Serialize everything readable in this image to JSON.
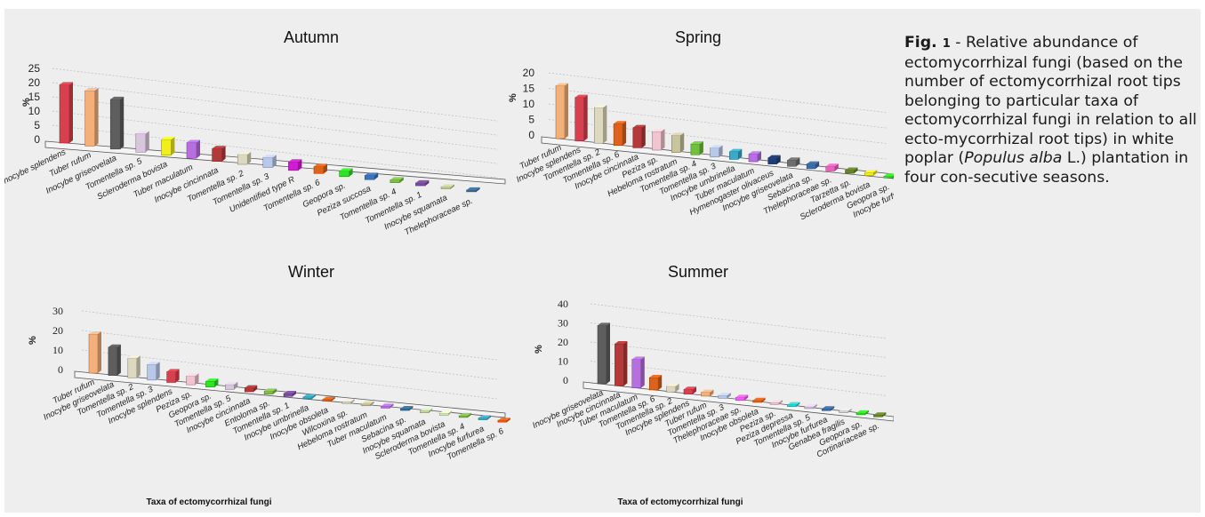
{
  "caption": {
    "fig": "Fig.",
    "num": "1",
    "text_before": " - Relative abundance of ectomycorrhizal fungi (based on the number of ectomycorrhizal root tips belonging to particular taxa of ectomycorrhizal fungi in relation to all ecto-mycorrhizal root tips) in white poplar (",
    "species": "Populus alba",
    "text_after": " L.) plantation in four con-secutive seasons."
  },
  "chart_data": [
    {
      "type": "bar",
      "title": "Autumn",
      "ylabel": "%",
      "xlabel": "",
      "ylim": [
        0,
        25
      ],
      "yticks": [
        "0",
        "5",
        "10",
        "15",
        "20",
        "25"
      ],
      "grid": true,
      "categories": [
        "Inocybe splendens",
        "Tuber rufum",
        "Inocybe griseovelata",
        "Tomentella sp. 5",
        "Scleroderma bovista",
        "Tuber maculatum",
        "Inocybe cincinnata",
        "Tomentella sp. 2",
        "Tomentella sp. 3",
        "Unidentified type R",
        "Tomentella sp. 6",
        "Geopora sp.",
        "Peziza succosa",
        "Tomentella sp. 4",
        "Tomentella sp. 1",
        "Inocybe squamata",
        "Thelephoraceae sp."
      ],
      "values": [
        20.5,
        19.5,
        17.5,
        6.5,
        5.5,
        5.5,
        4.5,
        3.5,
        3.5,
        3.0,
        2.5,
        2.0,
        1.5,
        1.0,
        1.0,
        0.5,
        0.5
      ],
      "colors": [
        "#d9404f",
        "#f5b07a",
        "#5e5e5e",
        "#d8c6dc",
        "#f2ee1c",
        "#b66ee0",
        "#b23a3a",
        "#ddd8c0",
        "#b8c8e8",
        "#d21cd4",
        "#e0621a",
        "#33e02a",
        "#3f72b6",
        "#80bc4a",
        "#7a4e9e",
        "#c2c896",
        "#3a6da6"
      ]
    },
    {
      "type": "bar",
      "title": "Spring",
      "ylabel": "%",
      "xlabel": "",
      "ylim": [
        0,
        20
      ],
      "yticks": [
        "0",
        "5",
        "10",
        "15",
        "20"
      ],
      "grid": true,
      "categories": [
        "Tuber rufum",
        "Inocybe splendens",
        "Tomentella sp. 2",
        "Tomentella sp. 6",
        "Inocybe cincinnata",
        "Peziza  sp.",
        "Hebeloma rostratum",
        "Tomentella sp. 4",
        "Tomentella sp. 3",
        "Inocybe umbrinella",
        "Tuber maculatum",
        "Hymenogaster olivaceus",
        "Inocybe griseovelata",
        "Sebacina sp.",
        "Thelephoraceae sp.",
        "Tarzetta sp.",
        "Scleroderma bovista",
        "Geopora sp.",
        "Inocybe furfurea"
      ],
      "values": [
        17.0,
        14.0,
        11.5,
        7.0,
        6.5,
        6.0,
        5.5,
        3.5,
        3.0,
        2.5,
        2.5,
        2.0,
        2.0,
        1.5,
        1.5,
        1.0,
        1.0,
        0.5,
        0.5
      ],
      "colors": [
        "#f5b07a",
        "#d9404f",
        "#ddd8c0",
        "#e0621a",
        "#b23a3a",
        "#f1c4cf",
        "#c8c49c",
        "#70c040",
        "#b8c8e8",
        "#3aa9c6",
        "#b66ee0",
        "#203e76",
        "#6e6e6e",
        "#3a6da6",
        "#f060c0",
        "#68842c",
        "#f2ee1c",
        "#33e02a",
        "#3a6da6"
      ]
    },
    {
      "type": "bar",
      "title": "Winter",
      "ylabel": "%",
      "xlabel": "Taxa of ectomycorrhizal fungi",
      "ylim": [
        0,
        30
      ],
      "yticks": [
        "0",
        "10",
        "20",
        "30"
      ],
      "grid": true,
      "categories": [
        "Tuber rufum",
        "Inocybe griseovelata",
        "Tomentella sp. 2",
        "Tomentella sp. 3",
        "Inocybe splendens",
        "Peziza  sp.",
        "Geopora sp.",
        "Tomentella sp. 5",
        "Inocybe cincinnata",
        "Entoloma sp.",
        "Tomentella sp. 1",
        "Inocybe umbrinella",
        "Inocybe obsoleta",
        "Wilcoxina sp.",
        "Hebeloma rostratum",
        "Tuber maculatum",
        "Sebacina sp.",
        "Inocybe squamata",
        "Scleroderma bovista",
        "Tomentella sp. 4",
        "Inocybe furfurea",
        "Tomentella sp. 6"
      ],
      "values": [
        20.0,
        14.5,
        10.0,
        8.0,
        5.5,
        4.5,
        3.0,
        2.5,
        2.0,
        1.5,
        1.5,
        1.0,
        0.5,
        0.5,
        0.5,
        0.5,
        0.5,
        0.5,
        0.5,
        0.5,
        0.5,
        0.5
      ],
      "colors": [
        "#f5b07a",
        "#5e5e5e",
        "#ddd8c0",
        "#b8c8e8",
        "#d9404f",
        "#f1c4cf",
        "#33e02a",
        "#d8c6dc",
        "#b23a3a",
        "#80bc4a",
        "#7a4e9e",
        "#3aa9c6",
        "#e0621a",
        "#d8d8c8",
        "#c8c49c",
        "#b66ee0",
        "#3a6da6",
        "#c8d8a8",
        "#d8e8b8",
        "#80bc4a",
        "#3aa9c6",
        "#e0621a"
      ]
    },
    {
      "type": "bar",
      "title": "Summer",
      "ylabel": "%",
      "xlabel": "Taxa of ectomycorrhizal fungi",
      "ylim": [
        0,
        40
      ],
      "yticks": [
        "0",
        "10",
        "20",
        "30",
        "40"
      ],
      "grid": true,
      "categories": [
        "Inocybe griseovelata",
        "Inocybe cincinnata",
        "Tuber maculatum",
        "Tomentella sp. 6",
        "Tomentella sp. 2",
        "Inocybe splendens",
        "Tuber rufum",
        "Tomentella sp. 3",
        "Thelephoraceae sp.",
        "Inocybe obsoleta",
        "Peziza  sp.",
        "Peziza depressa",
        "Tomentella sp. 5",
        "Inocybe furfurea",
        "Genabea fragilis",
        "Geopora sp.",
        "Cortinariaceae sp."
      ],
      "values": [
        30.5,
        22.0,
        15.0,
        6.5,
        3.0,
        2.5,
        2.0,
        1.5,
        1.5,
        1.0,
        1.0,
        0.5,
        0.5,
        0.5,
        0.5,
        0.5,
        0.5
      ],
      "colors": [
        "#5e5e5e",
        "#b23a3a",
        "#b66ee0",
        "#e0621a",
        "#ddd8c0",
        "#d9404f",
        "#f5b07a",
        "#b8c8e8",
        "#f060f0",
        "#e0621a",
        "#f1c4cf",
        "#30d0d0",
        "#d8c6dc",
        "#3a6da6",
        "#d8d8d8",
        "#33e02a",
        "#68842c"
      ]
    }
  ]
}
